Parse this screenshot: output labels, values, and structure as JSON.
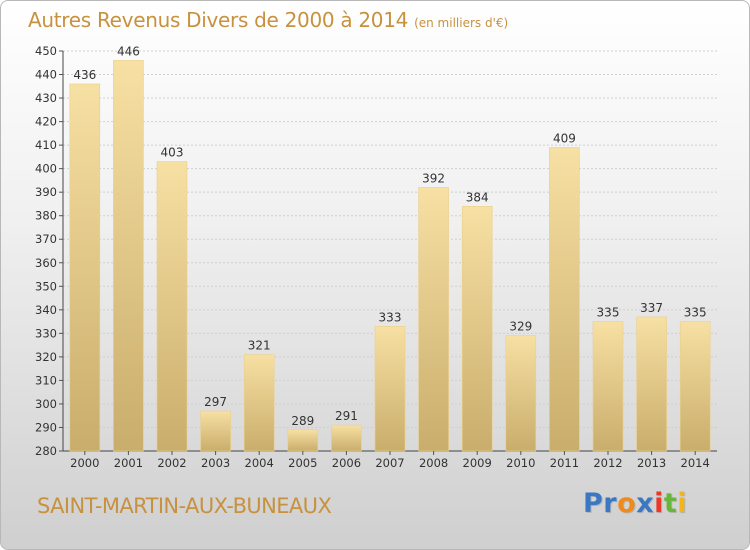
{
  "title": "Autres Revenus Divers de 2000 à 2014",
  "unit": "(en milliers d'€)",
  "commune": "SAINT-MARTIN-AUX-BUNEAUX",
  "logo": [
    "P",
    "r",
    "o",
    "x",
    "i",
    "t",
    "i"
  ],
  "colors": {
    "title": "#c8913e",
    "bar_light": "#f7e0a3",
    "bar_dark": "#c9ad6c",
    "logo": [
      "#3b78c4",
      "#3b78c4",
      "#ef8a1e",
      "#3b78c4",
      "#e83a2a",
      "#67b53a",
      "#f2b51b"
    ]
  },
  "chart_data": {
    "type": "bar",
    "categories": [
      "2000",
      "2001",
      "2002",
      "2003",
      "2004",
      "2005",
      "2006",
      "2007",
      "2008",
      "2009",
      "2010",
      "2011",
      "2012",
      "2013",
      "2014"
    ],
    "values": [
      436,
      446,
      403,
      297,
      321,
      289,
      291,
      333,
      392,
      384,
      329,
      409,
      335,
      337,
      335
    ],
    "ylim": [
      280,
      450
    ],
    "yticks": [
      280,
      290,
      300,
      310,
      320,
      330,
      340,
      350,
      360,
      370,
      380,
      390,
      400,
      410,
      420,
      430,
      440,
      450
    ],
    "grid": true,
    "data_labels": true
  }
}
